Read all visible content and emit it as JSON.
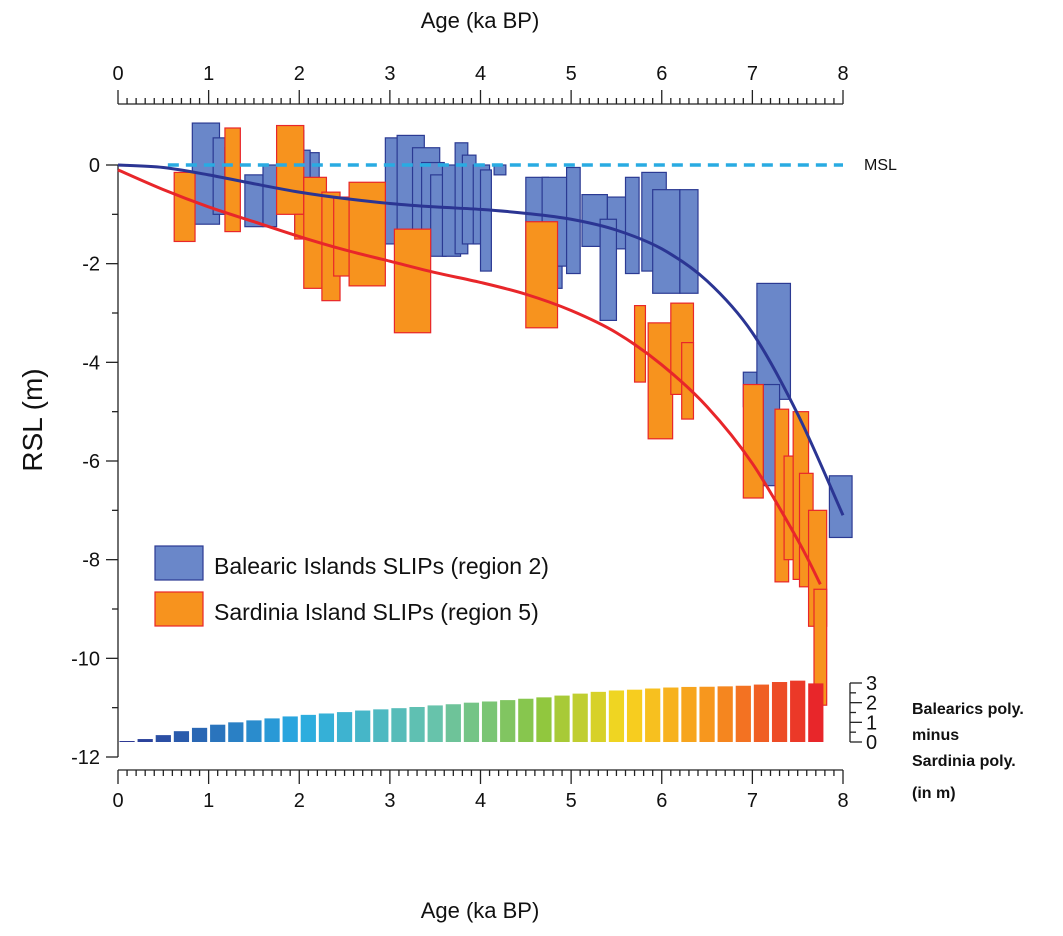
{
  "chart_data": {
    "type": "scatter",
    "top_xlabel": "Age (ka BP)",
    "bottom_xlabel": "Age (ka BP)",
    "ylabel": "RSL (m)",
    "xlim": [
      0,
      8
    ],
    "ylim": [
      -12,
      0
    ],
    "x_ticks": [
      "0",
      "1",
      "2",
      "3",
      "4",
      "5",
      "6",
      "7",
      "8"
    ],
    "y_ticks": [
      "0",
      "-2",
      "-4",
      "-6",
      "-8",
      "-10",
      "-12"
    ],
    "msl_label": "MSL",
    "msl_color": "#29abe2",
    "legend": [
      {
        "name": "Balearic Islands SLIPs (region 2)",
        "fill": "#6a87c9",
        "stroke": "#2b3a93"
      },
      {
        "name": "Sardinia Island SLIPs (region 5)",
        "fill": "#f7931e",
        "stroke": "#e8262a"
      }
    ],
    "balearic_boxes": [
      [
        0.82,
        1.12,
        0.85,
        -1.2
      ],
      [
        1.05,
        1.18,
        0.55,
        -1.0
      ],
      [
        1.18,
        1.28,
        0.35,
        -0.2
      ],
      [
        1.4,
        1.6,
        -0.2,
        -1.25
      ],
      [
        1.6,
        1.75,
        0.0,
        -1.25
      ],
      [
        1.9,
        2.05,
        0.7,
        -0.7
      ],
      [
        1.95,
        2.12,
        0.3,
        -1.4
      ],
      [
        2.12,
        2.22,
        0.25,
        -0.6
      ],
      [
        2.95,
        3.35,
        0.55,
        -1.6
      ],
      [
        3.08,
        3.38,
        0.6,
        -1.65
      ],
      [
        3.25,
        3.55,
        0.35,
        -1.55
      ],
      [
        3.35,
        3.6,
        0.05,
        -1.7
      ],
      [
        3.45,
        3.62,
        -0.2,
        -1.85
      ],
      [
        3.58,
        3.78,
        0.0,
        -1.85
      ],
      [
        3.72,
        3.86,
        0.45,
        -1.8
      ],
      [
        3.8,
        3.95,
        0.2,
        -1.6
      ],
      [
        3.92,
        4.1,
        0.0,
        -1.6
      ],
      [
        4.0,
        4.12,
        -0.1,
        -2.15
      ],
      [
        4.15,
        4.28,
        0.0,
        -0.2
      ],
      [
        4.5,
        4.75,
        -0.25,
        -2.6
      ],
      [
        4.72,
        4.9,
        -0.35,
        -2.5
      ],
      [
        4.68,
        4.95,
        -0.25,
        -2.05
      ],
      [
        4.95,
        5.1,
        -0.05,
        -2.2
      ],
      [
        5.12,
        5.4,
        -0.6,
        -1.65
      ],
      [
        5.4,
        5.7,
        -0.65,
        -1.7
      ],
      [
        5.32,
        5.5,
        -1.1,
        -3.15
      ],
      [
        5.6,
        5.75,
        -0.25,
        -2.2
      ],
      [
        5.78,
        6.05,
        -0.15,
        -2.15
      ],
      [
        5.9,
        6.2,
        -0.5,
        -2.6
      ],
      [
        6.2,
        6.4,
        -0.5,
        -2.6
      ],
      [
        6.9,
        7.05,
        -4.2,
        -4.9
      ],
      [
        7.05,
        7.42,
        -2.4,
        -4.75
      ],
      [
        7.12,
        7.3,
        -4.45,
        -6.5
      ],
      [
        7.85,
        8.1,
        -6.3,
        -7.55
      ]
    ],
    "sardinia_boxes": [
      [
        0.62,
        0.85,
        -0.15,
        -1.55
      ],
      [
        1.18,
        1.35,
        0.75,
        -1.35
      ],
      [
        1.75,
        2.05,
        0.8,
        -1.0
      ],
      [
        1.95,
        2.1,
        -1.0,
        -1.5
      ],
      [
        2.05,
        2.3,
        -0.25,
        -2.5
      ],
      [
        2.25,
        2.45,
        -0.55,
        -2.75
      ],
      [
        2.38,
        2.55,
        -0.65,
        -2.25
      ],
      [
        2.55,
        2.95,
        -0.35,
        -2.45
      ],
      [
        3.05,
        3.45,
        -1.3,
        -3.4
      ],
      [
        4.5,
        4.85,
        -1.15,
        -3.3
      ],
      [
        5.7,
        5.82,
        -2.85,
        -4.4
      ],
      [
        5.85,
        6.12,
        -3.2,
        -5.55
      ],
      [
        6.1,
        6.35,
        -2.8,
        -4.65
      ],
      [
        6.22,
        6.35,
        -3.6,
        -5.15
      ],
      [
        6.9,
        7.12,
        -4.45,
        -6.75
      ],
      [
        7.25,
        7.4,
        -4.95,
        -8.45
      ],
      [
        7.35,
        7.5,
        -5.9,
        -8.0
      ],
      [
        7.45,
        7.62,
        -5.0,
        -8.4
      ],
      [
        7.52,
        7.67,
        -6.25,
        -8.55
      ],
      [
        7.62,
        7.82,
        -7.0,
        -9.35
      ],
      [
        7.68,
        7.82,
        -8.6,
        -10.95
      ]
    ],
    "series": [
      {
        "name": "Balearics poly.",
        "color": "#2b3593",
        "x": [
          0,
          0.5,
          1.0,
          1.5,
          2.0,
          2.5,
          3.0,
          3.5,
          4.0,
          4.5,
          5.0,
          5.5,
          6.0,
          6.5,
          7.0,
          7.5,
          8.0
        ],
        "y": [
          0,
          -0.05,
          -0.2,
          -0.38,
          -0.55,
          -0.68,
          -0.78,
          -0.85,
          -0.9,
          -0.98,
          -1.1,
          -1.32,
          -1.7,
          -2.35,
          -3.4,
          -5.05,
          -7.1
        ]
      },
      {
        "name": "Sardinia poly.",
        "color": "#e8262a",
        "x": [
          0,
          0.5,
          1.0,
          1.5,
          2.0,
          2.5,
          3.0,
          3.5,
          4.0,
          4.5,
          5.0,
          5.5,
          6.0,
          6.5,
          7.0,
          7.5,
          7.75
        ],
        "y": [
          -0.1,
          -0.5,
          -0.85,
          -1.15,
          -1.45,
          -1.72,
          -1.95,
          -2.18,
          -2.38,
          -2.62,
          -2.95,
          -3.4,
          -4.05,
          -4.9,
          -6.05,
          -7.6,
          -8.5
        ]
      }
    ],
    "difference_inset": {
      "label_lines": [
        "Balearics poly.",
        "minus",
        "Sardinia poly.",
        "(in m)"
      ],
      "ylim": [
        0,
        3
      ],
      "y_ticks": [
        "0",
        "1",
        "2",
        "3"
      ],
      "x": [
        0.1,
        0.3,
        0.5,
        0.7,
        0.9,
        1.1,
        1.3,
        1.5,
        1.7,
        1.9,
        2.1,
        2.3,
        2.5,
        2.7,
        2.9,
        3.1,
        3.3,
        3.5,
        3.7,
        3.9,
        4.1,
        4.3,
        4.5,
        4.7,
        4.9,
        5.1,
        5.3,
        5.5,
        5.7,
        5.9,
        6.1,
        6.3,
        6.5,
        6.7,
        6.9,
        7.1,
        7.3,
        7.5,
        7.7
      ],
      "values": [
        0.05,
        0.15,
        0.35,
        0.55,
        0.72,
        0.88,
        1.0,
        1.1,
        1.2,
        1.3,
        1.38,
        1.45,
        1.52,
        1.6,
        1.66,
        1.72,
        1.78,
        1.86,
        1.92,
        2.0,
        2.06,
        2.13,
        2.2,
        2.27,
        2.36,
        2.46,
        2.55,
        2.62,
        2.66,
        2.72,
        2.77,
        2.8,
        2.81,
        2.83,
        2.86,
        2.92,
        3.05,
        3.12,
        2.98
      ]
    }
  }
}
